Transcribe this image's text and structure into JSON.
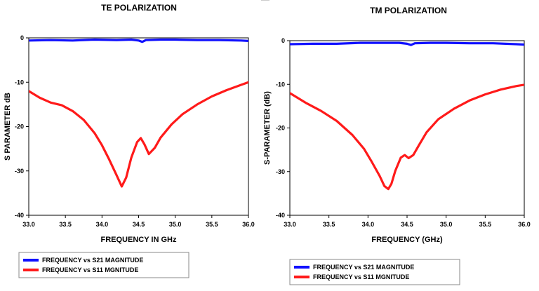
{
  "colors": {
    "s21": "#1010ff",
    "s11": "#ff1a1a",
    "axis": "#000000",
    "background": "#ffffff"
  },
  "chart_data": [
    {
      "type": "line",
      "title": "TE POLARIZATION",
      "xlabel": "FREQUENCY IN GHz",
      "ylabel": "S PARAMETER  dB",
      "xlim": [
        33.0,
        36.0
      ],
      "ylim": [
        -40,
        0
      ],
      "xticks": [
        "33.0",
        "33.5",
        "34.0",
        "34.5",
        "35.0",
        "35.5",
        "36.0"
      ],
      "yticks": [
        "0",
        "-10",
        "-20",
        "-30",
        "-40"
      ],
      "grid": false,
      "legend_position": "bottom-left",
      "series": [
        {
          "name": "FREQUENCY vs S21  MAGNITUDE",
          "color": "#1010ff",
          "x": [
            33.0,
            33.3,
            33.6,
            33.9,
            34.2,
            34.4,
            34.5,
            34.55,
            34.6,
            34.8,
            35.0,
            35.3,
            35.6,
            35.9,
            36.0
          ],
          "y": [
            -0.6,
            -0.5,
            -0.6,
            -0.4,
            -0.5,
            -0.4,
            -0.6,
            -0.9,
            -0.5,
            -0.4,
            -0.4,
            -0.5,
            -0.5,
            -0.6,
            -0.7
          ]
        },
        {
          "name": "FREQUENCY vs S11  MGNITUDE",
          "color": "#ff1a1a",
          "x": [
            33.0,
            33.15,
            33.3,
            33.45,
            33.6,
            33.75,
            33.9,
            34.0,
            34.1,
            34.2,
            34.27,
            34.33,
            34.4,
            34.48,
            34.53,
            34.58,
            34.64,
            34.72,
            34.8,
            34.95,
            35.1,
            35.3,
            35.5,
            35.7,
            35.9,
            36.0
          ],
          "y": [
            -12,
            -13.5,
            -14.6,
            -15.2,
            -16.5,
            -18.5,
            -21.5,
            -24.2,
            -27.5,
            -31.0,
            -33.5,
            -31.5,
            -27.0,
            -23.5,
            -22.6,
            -24.0,
            -26.2,
            -24.8,
            -22.5,
            -19.5,
            -17.2,
            -15.0,
            -13.2,
            -11.8,
            -10.6,
            -10.0
          ]
        }
      ]
    },
    {
      "type": "line",
      "title": "TM POLARIZATION",
      "xlabel": "FREQUENCY  (GHz)",
      "ylabel": "S-PARAMETER  (dB)",
      "xlim": [
        33.0,
        36.0
      ],
      "ylim": [
        -40,
        0
      ],
      "xticks": [
        "33.0",
        "33.5",
        "34.0",
        "34.5",
        "35.0",
        "35.5",
        "36.0"
      ],
      "yticks": [
        "0",
        "-10",
        "-20",
        "-30",
        "-40"
      ],
      "grid": false,
      "legend_position": "bottom-left",
      "series": [
        {
          "name": "FREQUENCY vs S21  MAGNITUDE",
          "color": "#1010ff",
          "x": [
            33.0,
            33.3,
            33.6,
            33.9,
            34.2,
            34.4,
            34.5,
            34.55,
            34.6,
            34.8,
            35.0,
            35.3,
            35.6,
            35.9,
            36.0
          ],
          "y": [
            -0.8,
            -0.7,
            -0.7,
            -0.5,
            -0.5,
            -0.5,
            -0.7,
            -1.0,
            -0.6,
            -0.5,
            -0.5,
            -0.6,
            -0.6,
            -0.8,
            -0.9
          ]
        },
        {
          "name": "FREQUENCY vs S11  MGNITUDE",
          "color": "#ff1a1a",
          "x": [
            33.0,
            33.2,
            33.4,
            33.6,
            33.8,
            33.95,
            34.05,
            34.15,
            34.21,
            34.26,
            34.3,
            34.35,
            34.42,
            34.47,
            34.52,
            34.58,
            34.65,
            34.75,
            34.9,
            35.1,
            35.3,
            35.5,
            35.7,
            35.9,
            36.0
          ],
          "y": [
            -12,
            -14.2,
            -16.1,
            -18.4,
            -21.6,
            -24.8,
            -27.8,
            -31.0,
            -33.3,
            -34.0,
            -32.8,
            -29.8,
            -26.8,
            -26.2,
            -26.9,
            -26.2,
            -24.0,
            -21.0,
            -18.0,
            -15.6,
            -13.7,
            -12.3,
            -11.2,
            -10.4,
            -10.1
          ]
        }
      ]
    }
  ]
}
